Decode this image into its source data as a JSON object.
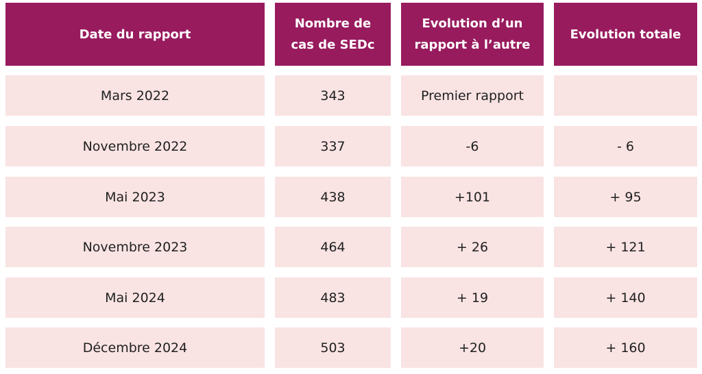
{
  "table": {
    "headers": [
      "Date du rapport",
      "Nombre de\ncas de SEDc",
      "Evolution d’un\nrapport à l’autre",
      "Evolution totale"
    ],
    "rows": [
      [
        "Mars 2022",
        "343",
        "Premier rapport",
        ""
      ],
      [
        "Novembre 2022",
        "337",
        "-6",
        "- 6"
      ],
      [
        "Mai 2023",
        "438",
        "+101",
        "+ 95"
      ],
      [
        "Novembre 2023",
        "464",
        "+ 26",
        "+ 121"
      ],
      [
        "Mai 2024",
        "483",
        "+ 19",
        "+ 140"
      ],
      [
        "Décembre 2024",
        "503",
        "+20",
        "+ 160"
      ]
    ]
  },
  "colors": {
    "header_bg": "#981b5e",
    "header_text": "#ffffff",
    "row_bg": "#f9e3e3",
    "row_text": "#1f1f1f"
  }
}
